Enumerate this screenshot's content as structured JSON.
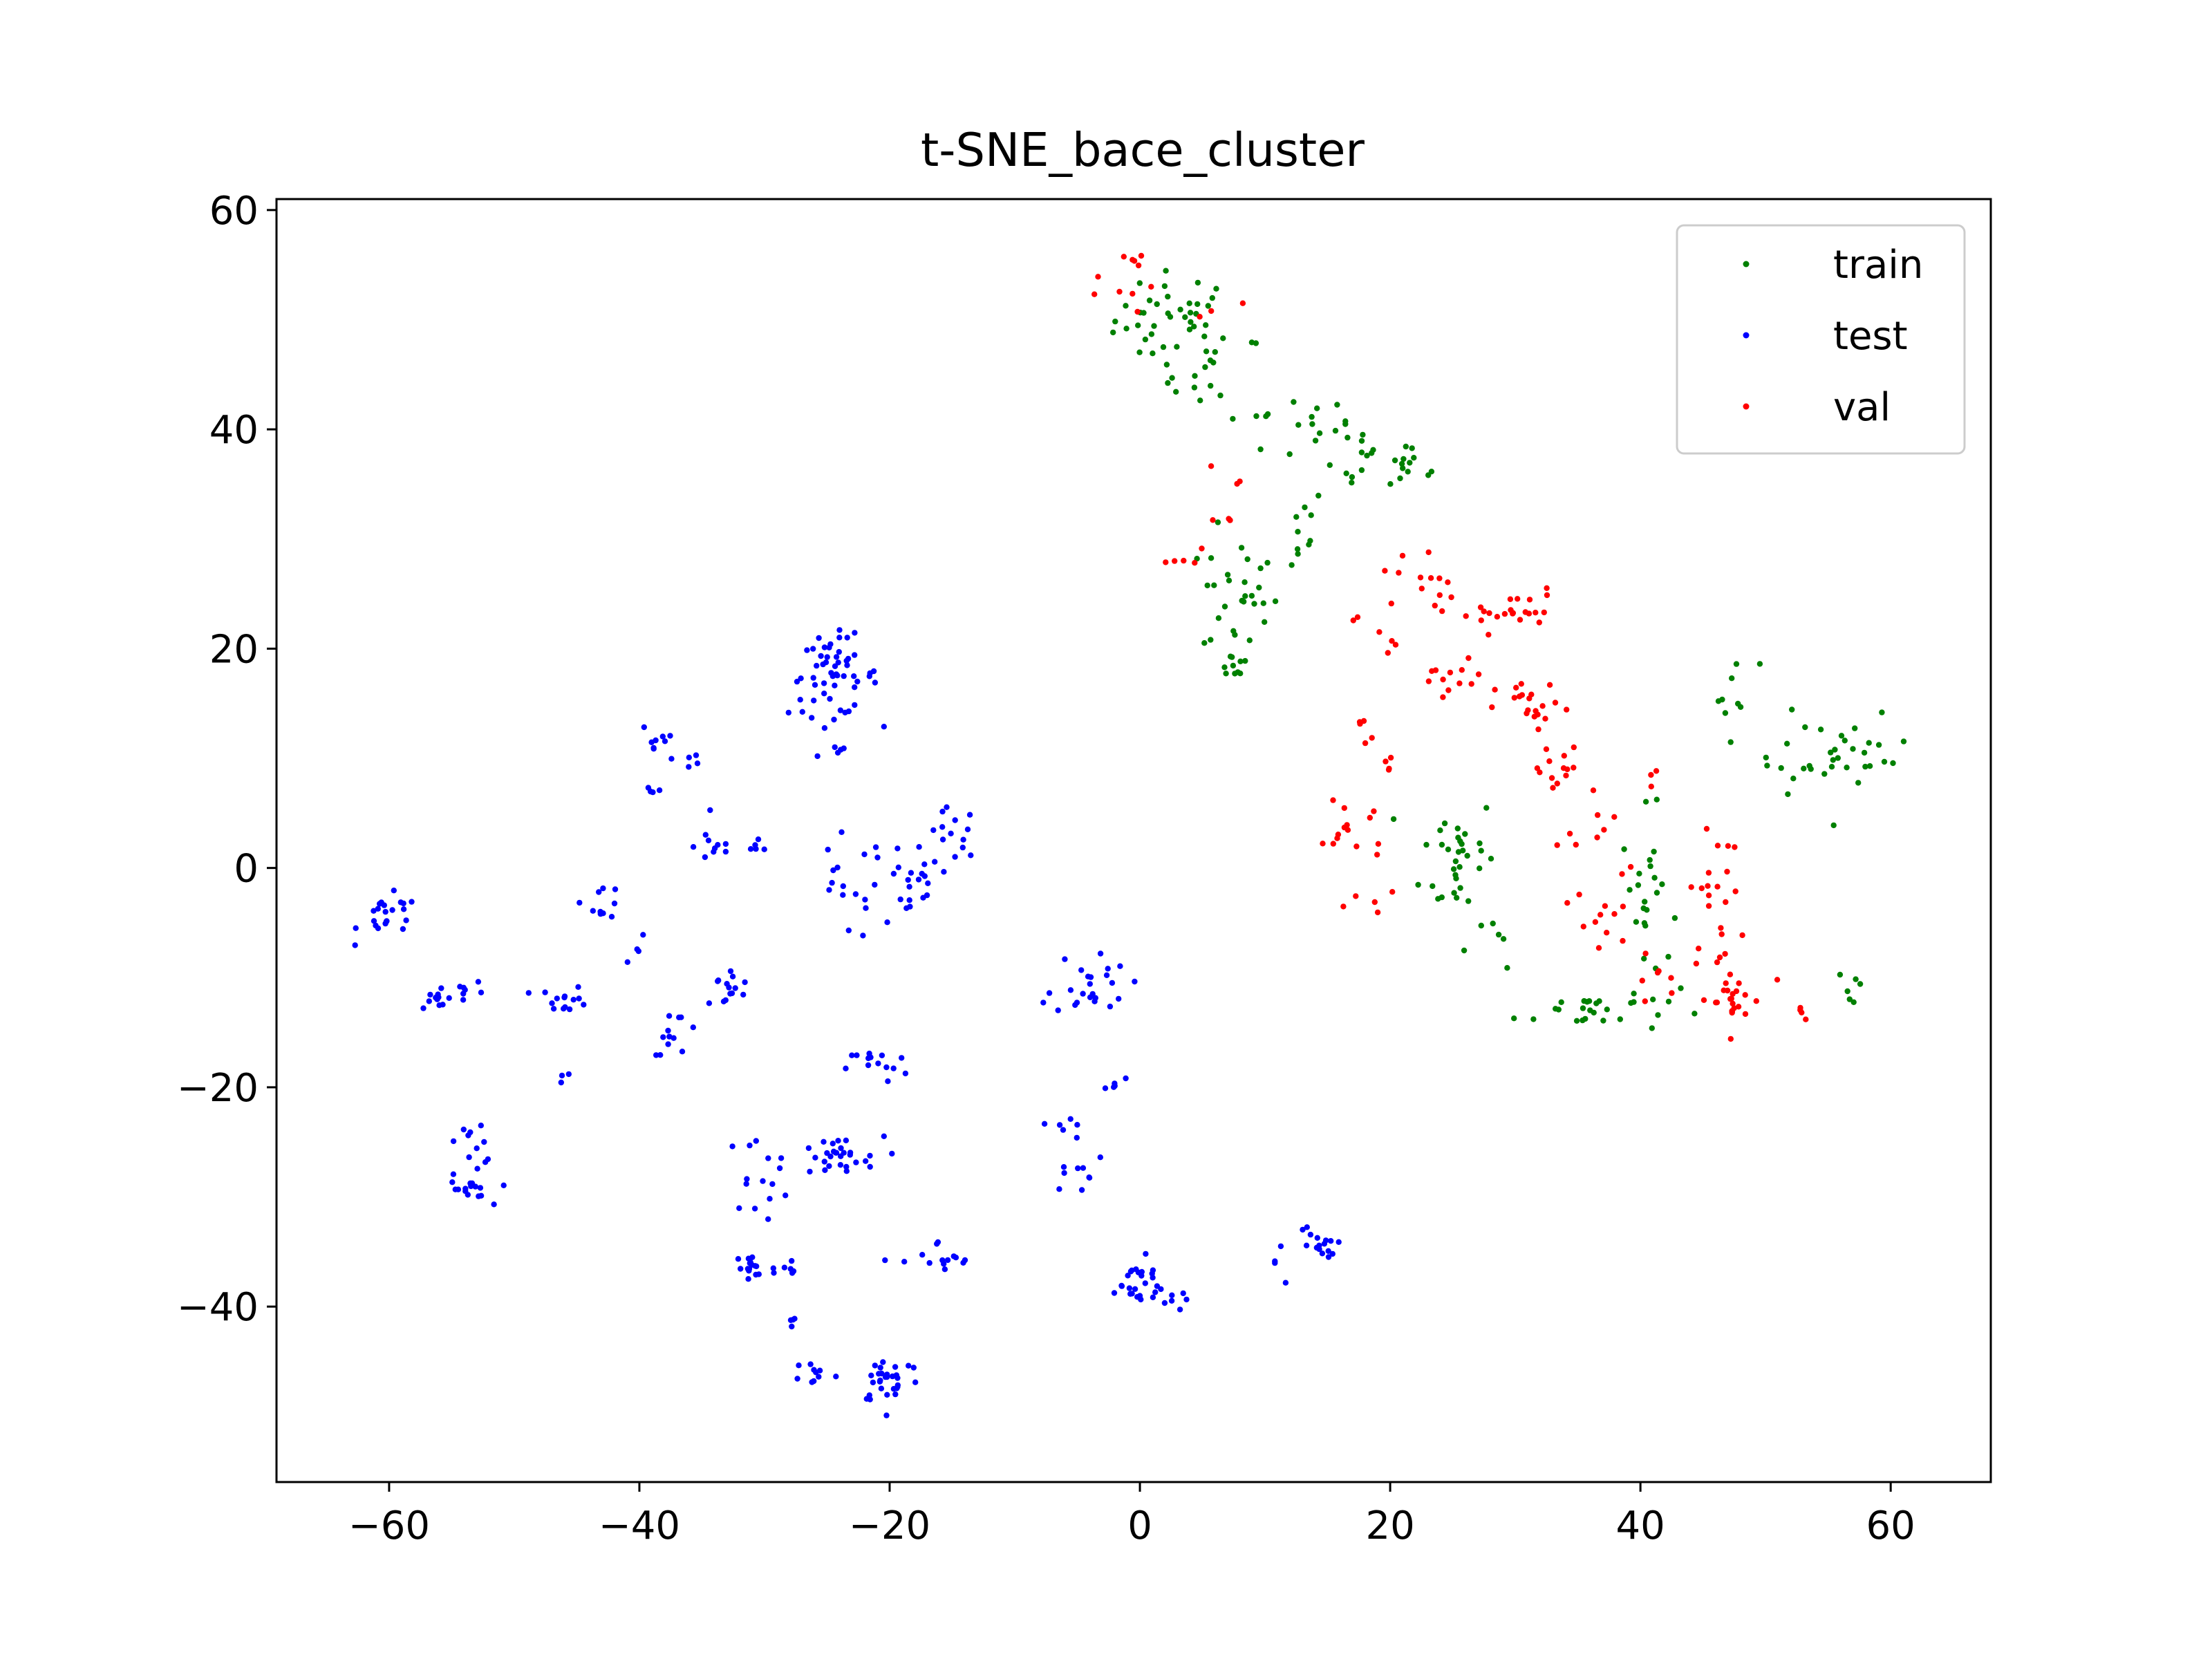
{
  "chart_data": {
    "type": "scatter",
    "title": "t-SNE_bace_cluster",
    "xlabel": "",
    "ylabel": "",
    "xlim": [
      -69,
      68
    ],
    "ylim": [
      -56,
      61
    ],
    "x_ticks": [
      -60,
      -40,
      -20,
      0,
      20,
      40,
      60
    ],
    "y_ticks": [
      -40,
      -20,
      0,
      20,
      40,
      60
    ],
    "x_tick_labels": [
      "−60",
      "−40",
      "−20",
      "0",
      "20",
      "40",
      "60"
    ],
    "y_tick_labels": [
      "−40",
      "−20",
      "0",
      "20",
      "40",
      "60"
    ],
    "grid": false,
    "legend_position": "top-right",
    "series": [
      {
        "name": "train",
        "color": "#008000",
        "clusters": [
          {
            "cx": 3,
            "cy": 50,
            "sx": 2.5,
            "sy": 2.2,
            "n": 40
          },
          {
            "cx": 6,
            "cy": 45,
            "sx": 2,
            "sy": 2,
            "n": 15
          },
          {
            "cx": 12,
            "cy": 40,
            "sx": 2.5,
            "sy": 1.5,
            "n": 15
          },
          {
            "cx": 18,
            "cy": 37,
            "sx": 2.5,
            "sy": 1.5,
            "n": 20
          },
          {
            "cx": 22,
            "cy": 36.5,
            "sx": 1,
            "sy": 1,
            "n": 6
          },
          {
            "cx": 8,
            "cy": 25,
            "sx": 1.5,
            "sy": 3,
            "n": 28
          },
          {
            "cx": 12,
            "cy": 31,
            "sx": 1.5,
            "sy": 2,
            "n": 10
          },
          {
            "cx": 7.5,
            "cy": 18.5,
            "sx": 0.7,
            "sy": 0.7,
            "n": 10
          },
          {
            "cx": 25.5,
            "cy": 1,
            "sx": 1.5,
            "sy": 3,
            "n": 32
          },
          {
            "cx": 28,
            "cy": -6,
            "sx": 1.5,
            "sy": 1.5,
            "n": 6
          },
          {
            "cx": 40.5,
            "cy": -3,
            "sx": 1,
            "sy": 4,
            "n": 25
          },
          {
            "cx": 36,
            "cy": -13,
            "sx": 3,
            "sy": 1,
            "n": 25
          },
          {
            "cx": 47.5,
            "cy": 16,
            "sx": 1,
            "sy": 1.5,
            "n": 8
          },
          {
            "cx": 53,
            "cy": 11,
            "sx": 2,
            "sy": 2,
            "n": 15
          },
          {
            "cx": 57.5,
            "cy": 10,
            "sx": 2,
            "sy": 1.8,
            "n": 20
          },
          {
            "cx": 57,
            "cy": -11,
            "sx": 0.6,
            "sy": 1,
            "n": 6
          }
        ]
      },
      {
        "name": "test",
        "color": "#0000ff",
        "clusters": [
          {
            "cx": -24.5,
            "cy": 17.5,
            "sx": 1.8,
            "sy": 1.8,
            "n": 55
          },
          {
            "cx": -24.5,
            "cy": 10.5,
            "sx": 0.8,
            "sy": 0.5,
            "n": 5
          },
          {
            "cx": -38.5,
            "cy": 12,
            "sx": 0.8,
            "sy": 1,
            "n": 8
          },
          {
            "cx": -39,
            "cy": 7,
            "sx": 0.5,
            "sy": 1,
            "n": 4
          },
          {
            "cx": -36,
            "cy": 10,
            "sx": 0.7,
            "sy": 0.7,
            "n": 5
          },
          {
            "cx": -34,
            "cy": 2,
            "sx": 0.8,
            "sy": 1,
            "n": 10
          },
          {
            "cx": -30.5,
            "cy": 2,
            "sx": 0.5,
            "sy": 0.5,
            "n": 5
          },
          {
            "cx": -23.5,
            "cy": -2,
            "sx": 1.5,
            "sy": 2.5,
            "n": 15
          },
          {
            "cx": -18.5,
            "cy": -2,
            "sx": 1.8,
            "sy": 2,
            "n": 22
          },
          {
            "cx": -15,
            "cy": 3,
            "sx": 1,
            "sy": 1.2,
            "n": 14
          },
          {
            "cx": -60,
            "cy": -4.5,
            "sx": 1.2,
            "sy": 1,
            "n": 22
          },
          {
            "cx": -56,
            "cy": -12,
            "sx": 0.8,
            "sy": 0.8,
            "n": 12
          },
          {
            "cx": -53,
            "cy": -11,
            "sx": 1,
            "sy": 0.6,
            "n": 6
          },
          {
            "cx": -46,
            "cy": -12,
            "sx": 1,
            "sy": 0.6,
            "n": 14
          },
          {
            "cx": -43,
            "cy": -3,
            "sx": 0.8,
            "sy": 0.8,
            "n": 10
          },
          {
            "cx": -40,
            "cy": -8,
            "sx": 0.5,
            "sy": 0.8,
            "n": 4
          },
          {
            "cx": -37,
            "cy": -15,
            "sx": 1,
            "sy": 1,
            "n": 12
          },
          {
            "cx": -33,
            "cy": -11,
            "sx": 1,
            "sy": 1,
            "n": 14
          },
          {
            "cx": -53,
            "cy": -25,
            "sx": 0.8,
            "sy": 1,
            "n": 12
          },
          {
            "cx": -54,
            "cy": -29.5,
            "sx": 1,
            "sy": 0.7,
            "n": 15
          },
          {
            "cx": -46,
            "cy": -19,
            "sx": 0.3,
            "sy": 0.5,
            "n": 3
          },
          {
            "cx": -30.5,
            "cy": -28,
            "sx": 1.3,
            "sy": 1.8,
            "n": 14
          },
          {
            "cx": -24.5,
            "cy": -26.5,
            "sx": 2,
            "sy": 1,
            "n": 30
          },
          {
            "cx": -21,
            "cy": -18,
            "sx": 1.2,
            "sy": 0.8,
            "n": 14
          },
          {
            "cx": -31,
            "cy": -36.5,
            "sx": 1,
            "sy": 1,
            "n": 18
          },
          {
            "cx": -28,
            "cy": -36.5,
            "sx": 0.4,
            "sy": 0.5,
            "n": 5
          },
          {
            "cx": -27.5,
            "cy": -41.5,
            "sx": 0.4,
            "sy": 0.4,
            "n": 4
          },
          {
            "cx": -26,
            "cy": -46,
            "sx": 0.8,
            "sy": 0.6,
            "n": 10
          },
          {
            "cx": -20,
            "cy": -46.5,
            "sx": 1.3,
            "sy": 1.2,
            "n": 30
          },
          {
            "cx": -16,
            "cy": -36,
            "sx": 1.5,
            "sy": 1,
            "n": 14
          },
          {
            "cx": -4,
            "cy": -10.5,
            "sx": 1.5,
            "sy": 1.5,
            "n": 24
          },
          {
            "cx": -2,
            "cy": -19.5,
            "sx": 0.4,
            "sy": 0.4,
            "n": 5
          },
          {
            "cx": -5,
            "cy": -25.5,
            "sx": 1,
            "sy": 2,
            "n": 15
          },
          {
            "cx": -0.5,
            "cy": -38,
            "sx": 1.5,
            "sy": 1.2,
            "n": 26
          },
          {
            "cx": 2.5,
            "cy": -39.5,
            "sx": 0.6,
            "sy": 0.4,
            "n": 6
          },
          {
            "cx": 14,
            "cy": -34.5,
            "sx": 0.8,
            "sy": 1,
            "n": 16
          },
          {
            "cx": 11,
            "cy": -36,
            "sx": 0.6,
            "sy": 1,
            "n": 4
          }
        ]
      },
      {
        "name": "val",
        "color": "#ff0000",
        "clusters": [
          {
            "cx": -1,
            "cy": 55.5,
            "sx": 0.6,
            "sy": 0.3,
            "n": 5
          },
          {
            "cx": 0,
            "cy": 52,
            "sx": 2,
            "sy": 1,
            "n": 6
          },
          {
            "cx": 6,
            "cy": 51,
            "sx": 1,
            "sy": 0.5,
            "n": 3
          },
          {
            "cx": 6,
            "cy": 34,
            "sx": 1.5,
            "sy": 1.5,
            "n": 6
          },
          {
            "cx": 4,
            "cy": 28,
            "sx": 1,
            "sy": 2,
            "n": 5
          },
          {
            "cx": 22,
            "cy": 26,
            "sx": 1.5,
            "sy": 2,
            "n": 12
          },
          {
            "cx": 19,
            "cy": 22,
            "sx": 1,
            "sy": 1.5,
            "n": 6
          },
          {
            "cx": 29,
            "cy": 23.5,
            "sx": 2.5,
            "sy": 1,
            "n": 24
          },
          {
            "cx": 25,
            "cy": 17,
            "sx": 1.5,
            "sy": 1,
            "n": 12
          },
          {
            "cx": 31.5,
            "cy": 14.5,
            "sx": 1.5,
            "sy": 1.2,
            "n": 20
          },
          {
            "cx": 33.5,
            "cy": 8.5,
            "sx": 1.2,
            "sy": 1.5,
            "n": 14
          },
          {
            "cx": 18,
            "cy": 13,
            "sx": 0.5,
            "sy": 1,
            "n": 5
          },
          {
            "cx": 20,
            "cy": 9,
            "sx": 0.6,
            "sy": 1,
            "n": 4
          },
          {
            "cx": 17,
            "cy": 4,
            "sx": 1.5,
            "sy": 2,
            "n": 14
          },
          {
            "cx": 18.5,
            "cy": -3,
            "sx": 1,
            "sy": 0.4,
            "n": 5
          },
          {
            "cx": 36,
            "cy": 2,
            "sx": 1.5,
            "sy": 2,
            "n": 10
          },
          {
            "cx": 37,
            "cy": -5,
            "sx": 1.5,
            "sy": 1.5,
            "n": 10
          },
          {
            "cx": 41,
            "cy": -9,
            "sx": 1,
            "sy": 1.5,
            "n": 6
          },
          {
            "cx": 46,
            "cy": -3,
            "sx": 1,
            "sy": 3,
            "n": 22
          },
          {
            "cx": 47,
            "cy": -12,
            "sx": 1.5,
            "sy": 1.5,
            "n": 24
          },
          {
            "cx": 53,
            "cy": -13,
            "sx": 0.6,
            "sy": 0.4,
            "n": 4
          },
          {
            "cx": 41,
            "cy": 9,
            "sx": 0.3,
            "sy": 0.5,
            "n": 3
          }
        ]
      }
    ]
  }
}
